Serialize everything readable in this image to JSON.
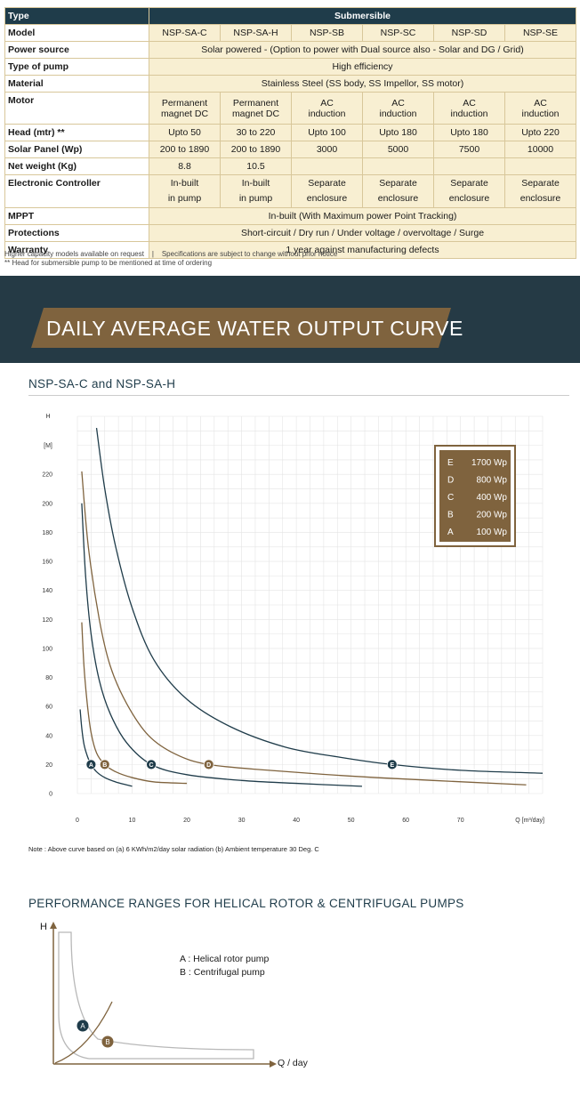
{
  "spec_table": {
    "columns": [
      "NSP-SA-C",
      "NSP-SA-H",
      "NSP-SB",
      "NSP-SC",
      "NSP-SD",
      "NSP-SE"
    ],
    "type_label": "Type",
    "type_value": "Submersible",
    "model_label": "Model",
    "power_label": "Power source",
    "power_value": "Solar powered - (Option to power with Dual source also - Solar and DG / Grid)",
    "pump_type_label": "Type of pump",
    "pump_type_value": "High efficiency",
    "material_label": "Material",
    "material_value": "Stainless Steel (SS body, SS Impellor, SS motor)",
    "motor_label": "Motor",
    "motor_values": [
      [
        "Permanent",
        "magnet DC"
      ],
      [
        "Permanent",
        "magnet DC"
      ],
      [
        "AC",
        "induction"
      ],
      [
        "AC",
        "induction"
      ],
      [
        "AC",
        "induction"
      ],
      [
        "AC",
        "induction"
      ]
    ],
    "head_label": "Head (mtr) **",
    "head_values": [
      "Upto 50",
      "30 to 220",
      "Upto 100",
      "Upto 180",
      "Upto 180",
      "Upto 220"
    ],
    "panel_label": "Solar Panel (Wp)",
    "panel_values": [
      "200 to 1890",
      "200 to 1890",
      "3000",
      "5000",
      "7500",
      "10000"
    ],
    "weight_label": "Net weight (Kg)",
    "weight_values": [
      "8.8",
      "10.5",
      "",
      "",
      "",
      ""
    ],
    "controller_label": "Electronic Controller",
    "controller_values": [
      [
        "In-built",
        "in pump"
      ],
      [
        "In-built",
        "in pump"
      ],
      [
        "Separate",
        "enclosure"
      ],
      [
        "Separate",
        "enclosure"
      ],
      [
        "Separate",
        "enclosure"
      ],
      [
        "Separate",
        "enclosure"
      ]
    ],
    "mppt_label": "MPPT",
    "mppt_value": "In-built (With Maximum power Point Tracking)",
    "protections_label": "Protections",
    "protections_value": "Short-circuit / Dry run / Under voltage / overvoltage / Surge",
    "warranty_label": "Warranty",
    "warranty_value": "1 year against manufacturing defects"
  },
  "notes": {
    "line1": "Higher capacity models available on request    |    Specifications are subject to change without prior notice",
    "line2": "** Head for submersible pump to be mentioned at time of ordering"
  },
  "banner": {
    "title": "DAILY AVERAGE WATER OUTPUT CURVE"
  },
  "chart_data": [
    {
      "type": "line",
      "title": "NSP-SA-C and NSP-SA-H",
      "xlabel": "Q [m³/day]",
      "ylabel": "H",
      "ylabel_unit": "[M]",
      "xlim": [
        0,
        85
      ],
      "ylim": [
        0,
        260
      ],
      "x_ticks": [
        0,
        10,
        20,
        30,
        40,
        50,
        60,
        70
      ],
      "y_ticks": [
        0,
        20,
        40,
        60,
        80,
        100,
        120,
        140,
        160,
        180,
        200,
        220
      ],
      "grid": true,
      "legend_placement": "top-right",
      "legend": [
        {
          "letter": "E",
          "value": "1700 Wp"
        },
        {
          "letter": "D",
          "value": "800 Wp"
        },
        {
          "letter": "C",
          "value": "400 Wp"
        },
        {
          "letter": "B",
          "value": "200 Wp"
        },
        {
          "letter": "A",
          "value": "100 Wp"
        }
      ],
      "series": [
        {
          "name": "A",
          "color": "#1f3c4a",
          "marker": [
            2.5,
            20
          ],
          "x": [
            0.5,
            0.8,
            1.2,
            1.8,
            2.5,
            3.5,
            5,
            7,
            10
          ],
          "y": [
            58,
            45,
            34,
            26,
            20,
            15,
            11,
            8,
            5
          ]
        },
        {
          "name": "B",
          "color": "#7f633e",
          "marker": [
            5,
            20
          ],
          "x": [
            0.8,
            1.2,
            1.8,
            2.5,
            3.5,
            5,
            7,
            10,
            14,
            20
          ],
          "y": [
            118,
            88,
            62,
            42,
            28,
            20,
            15,
            11,
            8,
            7
          ]
        },
        {
          "name": "C",
          "color": "#1f3c4a",
          "marker": [
            13.5,
            20
          ],
          "x": [
            0.8,
            1.5,
            2.5,
            4,
            6,
            9,
            13.5,
            20,
            30,
            40,
            52
          ],
          "y": [
            200,
            150,
            110,
            78,
            55,
            35,
            20,
            13,
            9,
            7,
            5
          ]
        },
        {
          "name": "D",
          "color": "#7f633e",
          "marker": [
            24,
            20
          ],
          "x": [
            0.8,
            2,
            4,
            6,
            9,
            13,
            18,
            24,
            35,
            50,
            65,
            82
          ],
          "y": [
            222,
            170,
            120,
            88,
            62,
            40,
            27,
            20,
            16,
            12,
            9,
            6
          ]
        },
        {
          "name": "E",
          "color": "#1f3c4a",
          "marker": [
            57.5,
            20
          ],
          "x": [
            3.5,
            5,
            7,
            10,
            14,
            20,
            28,
            38,
            48,
            57.5,
            70,
            85
          ],
          "y": [
            252,
            210,
            170,
            128,
            92,
            65,
            46,
            32,
            25,
            20,
            16,
            14
          ]
        }
      ],
      "note": "Note : Above curve based on (a) 6 KWh/m2/day solar radiation  (b) Ambient temperature 30 Deg. C"
    },
    {
      "type": "line",
      "title": "PERFORMANCE RANGES FOR HELICAL ROTOR & CENTRIFUGAL PUMPS",
      "xlabel": "Q / day",
      "ylabel": "H",
      "legend": [
        {
          "letter": "A",
          "text": "A : Helical rotor pump"
        },
        {
          "letter": "B",
          "text": "B : Centrifugal pump"
        }
      ]
    }
  ]
}
